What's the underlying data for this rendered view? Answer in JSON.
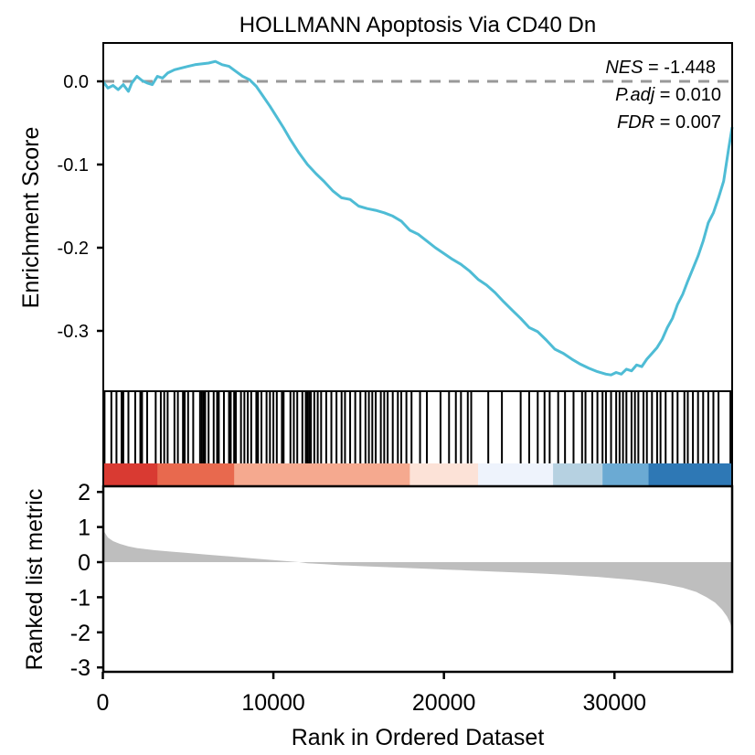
{
  "chart_data": {
    "type": "line",
    "title": "HOLLMANN Apoptosis Via CD40 Dn",
    "xlabel": "Rank in Ordered Dataset",
    "xlim": [
      0,
      36900
    ],
    "x_ticks": [
      0,
      10000,
      20000,
      30000
    ],
    "x_tick_labels": [
      "0",
      "10000",
      "20000",
      "30000"
    ],
    "panels": {
      "enrichment": {
        "ylabel": "Enrichment Score",
        "ylim": [
          -0.365,
          0.047
        ],
        "y_ticks": [
          0.0,
          -0.1,
          -0.2,
          -0.3
        ],
        "y_tick_labels": [
          "0.0",
          "-0.1",
          "-0.2",
          "-0.3"
        ],
        "reference_line": 0.0,
        "line_color": "#4EBCD5",
        "ref_line_color": "#999999",
        "series": [
          {
            "name": "Running Enrichment Score",
            "x": [
              0,
              300,
              600,
              900,
              1200,
              1500,
              1700,
              2000,
              2300,
              2600,
              2900,
              3200,
              3500,
              3800,
              4200,
              4600,
              5000,
              5400,
              5800,
              6200,
              6600,
              7000,
              7400,
              7800,
              8200,
              8600,
              9000,
              9400,
              9800,
              10200,
              10600,
              11000,
              11500,
              12000,
              12500,
              13000,
              13500,
              14000,
              14500,
              15000,
              15500,
              16000,
              16500,
              17000,
              17500,
              18000,
              18500,
              19000,
              19500,
              20000,
              20500,
              21000,
              21500,
              22000,
              22500,
              23000,
              23500,
              24000,
              24500,
              25000,
              25500,
              26000,
              26500,
              27000,
              27500,
              28000,
              28500,
              29000,
              29500,
              29800,
              30100,
              30400,
              30700,
              31000,
              31300,
              31600,
              31900,
              32200,
              32500,
              32800,
              33100,
              33400,
              33700,
              34000,
              34300,
              34600,
              34900,
              35200,
              35500,
              35800,
              36100,
              36400,
              36700,
              36900
            ],
            "y": [
              0.0,
              -0.008,
              -0.005,
              -0.01,
              -0.004,
              -0.012,
              -0.002,
              0.006,
              0.001,
              -0.002,
              -0.004,
              0.006,
              0.004,
              0.01,
              0.014,
              0.016,
              0.018,
              0.02,
              0.021,
              0.022,
              0.024,
              0.02,
              0.018,
              0.012,
              0.006,
              0.002,
              -0.006,
              -0.018,
              -0.03,
              -0.043,
              -0.056,
              -0.07,
              -0.086,
              -0.1,
              -0.111,
              -0.121,
              -0.132,
              -0.14,
              -0.142,
              -0.15,
              -0.153,
              -0.155,
              -0.158,
              -0.162,
              -0.168,
              -0.179,
              -0.184,
              -0.192,
              -0.2,
              -0.207,
              -0.214,
              -0.22,
              -0.228,
              -0.238,
              -0.245,
              -0.254,
              -0.265,
              -0.275,
              -0.285,
              -0.296,
              -0.301,
              -0.311,
              -0.322,
              -0.327,
              -0.334,
              -0.34,
              -0.345,
              -0.349,
              -0.352,
              -0.353,
              -0.35,
              -0.352,
              -0.346,
              -0.348,
              -0.341,
              -0.343,
              -0.334,
              -0.327,
              -0.32,
              -0.31,
              -0.296,
              -0.285,
              -0.268,
              -0.256,
              -0.24,
              -0.225,
              -0.21,
              -0.192,
              -0.17,
              -0.158,
              -0.14,
              -0.12,
              -0.08,
              -0.055
            ]
          }
        ],
        "annotations": [
          {
            "label": "NES",
            "value": "-1.448"
          },
          {
            "label": "P.adj",
            "value": "0.010"
          },
          {
            "label": "FDR",
            "value": "0.007"
          }
        ]
      },
      "hits": {
        "positions": [
          100,
          500,
          800,
          1100,
          1200,
          1500,
          1900,
          2200,
          2300,
          2600,
          3100,
          3400,
          3600,
          3800,
          4200,
          4400,
          4700,
          4800,
          5000,
          5300,
          5700,
          5800,
          5900,
          6000,
          6200,
          6500,
          6700,
          6800,
          7100,
          7400,
          7500,
          7700,
          7800,
          8100,
          8300,
          8500,
          8700,
          9000,
          9100,
          9300,
          9600,
          9800,
          10000,
          10200,
          10500,
          10600,
          11000,
          11200,
          11400,
          11700,
          11900,
          12000,
          12100,
          12200,
          12400,
          12600,
          12800,
          13100,
          13400,
          13700,
          14000,
          14200,
          14500,
          14800,
          15100,
          15400,
          15600,
          15800,
          16000,
          16300,
          16500,
          16700,
          17000,
          17300,
          17500,
          17800,
          18100,
          18600,
          19000,
          19800,
          20300,
          20700,
          21000,
          21400,
          21600,
          22600,
          23400,
          24500,
          25000,
          25500,
          25900,
          26200,
          26700,
          27100,
          27600,
          28100,
          28300,
          28700,
          29000,
          29300,
          29500,
          29800,
          30100,
          30300,
          30500,
          30700,
          31000,
          31200,
          31400,
          31700,
          31900,
          32200,
          32500,
          32700,
          33000,
          33400,
          33700,
          34100,
          34300,
          34600,
          34900,
          35200,
          35500,
          35800,
          36100,
          36800
        ],
        "color": "#000000"
      },
      "rank_color_bands": [
        {
          "from": 0,
          "to": 3200,
          "color": "#D93A32"
        },
        {
          "from": 3200,
          "to": 7700,
          "color": "#E8694E"
        },
        {
          "from": 7700,
          "to": 18000,
          "color": "#F5A98F"
        },
        {
          "from": 18000,
          "to": 22000,
          "color": "#FCE2D7"
        },
        {
          "from": 22000,
          "to": 26400,
          "color": "#EEF3FC"
        },
        {
          "from": 26400,
          "to": 29300,
          "color": "#B6D1E1"
        },
        {
          "from": 29300,
          "to": 32000,
          "color": "#6BAAD3"
        },
        {
          "from": 32000,
          "to": 36900,
          "color": "#2E78B5"
        }
      ],
      "ranked_metric": {
        "ylabel": "Ranked list metric",
        "ylim": [
          -3.1,
          2.1
        ],
        "y_ticks": [
          2,
          1,
          0,
          -1,
          -2,
          -3
        ],
        "y_tick_labels": [
          "2",
          "1",
          "0",
          "-1",
          "-2",
          "-3"
        ],
        "fill_color": "#BEBEBE",
        "x": [
          0,
          100,
          300,
          600,
          1000,
          1500,
          2000,
          3000,
          4000,
          5000,
          6000,
          7000,
          8000,
          9000,
          10000,
          11000,
          11500,
          12000,
          13000,
          14000,
          15000,
          16000,
          17000,
          18000,
          19000,
          20000,
          21000,
          22000,
          23000,
          24000,
          25000,
          26000,
          27000,
          28000,
          29000,
          30000,
          31000,
          32000,
          33000,
          34000,
          34800,
          35400,
          35900,
          36300,
          36600,
          36800,
          36900
        ],
        "y": [
          1.0,
          0.85,
          0.7,
          0.6,
          0.52,
          0.45,
          0.4,
          0.34,
          0.3,
          0.26,
          0.22,
          0.18,
          0.14,
          0.1,
          0.06,
          0.02,
          0.0,
          -0.03,
          -0.06,
          -0.09,
          -0.11,
          -0.13,
          -0.15,
          -0.17,
          -0.19,
          -0.21,
          -0.23,
          -0.25,
          -0.27,
          -0.29,
          -0.31,
          -0.33,
          -0.36,
          -0.39,
          -0.42,
          -0.46,
          -0.5,
          -0.56,
          -0.63,
          -0.73,
          -0.85,
          -1.0,
          -1.15,
          -1.35,
          -1.55,
          -1.75,
          -1.95
        ]
      }
    }
  }
}
